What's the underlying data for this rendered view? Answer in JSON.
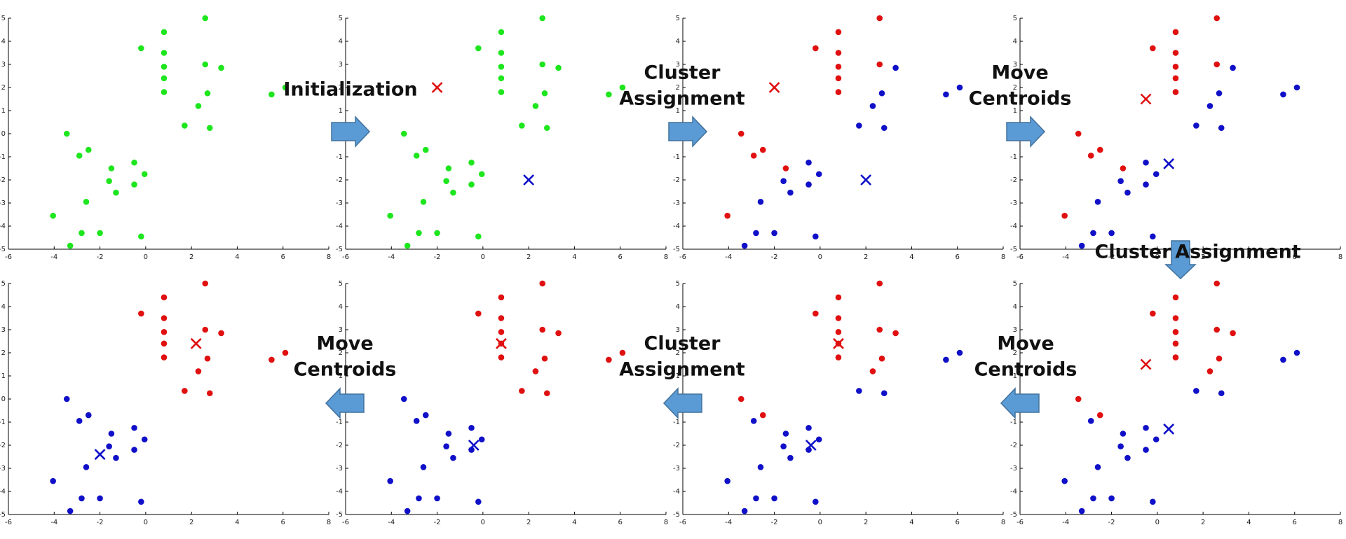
{
  "chart_data": [
    {
      "type": "scatter",
      "xlim": [
        -6,
        8
      ],
      "ylim": [
        -5,
        5
      ],
      "xticks": [
        -6,
        -4,
        -2,
        0,
        2,
        4,
        6,
        8
      ],
      "yticks": [
        -5,
        -4,
        -3,
        -2,
        -1,
        0,
        1,
        2,
        3,
        4,
        5
      ],
      "series": [
        {
          "color": "#1ee61e",
          "marker": "o",
          "x": [
            2.6,
            0.8,
            -0.2,
            0.8,
            0.8,
            2.6,
            3.3,
            0.8,
            0.8,
            2.7,
            2.3,
            5.5,
            6.1,
            1.7,
            2.8,
            -3.45,
            -2.9,
            -2.5,
            -1.5,
            -0.5,
            -0.05,
            -1.6,
            -0.5,
            -1.3,
            -2.6,
            -4.05,
            -2.8,
            -2.0,
            -0.2,
            -3.3
          ],
          "y": [
            5.0,
            4.4,
            3.7,
            3.5,
            2.9,
            3.0,
            2.85,
            2.4,
            1.8,
            1.75,
            1.2,
            1.7,
            2.0,
            0.35,
            0.25,
            0.0,
            -0.95,
            -0.7,
            -1.5,
            -1.25,
            -1.75,
            -2.05,
            -2.2,
            -2.55,
            -2.95,
            -3.55,
            -4.3,
            -4.3,
            -4.45,
            -4.85
          ]
        }
      ]
    },
    {
      "type": "scatter",
      "xlim": [
        -6,
        8
      ],
      "ylim": [
        -5,
        5
      ],
      "xticks": [
        -6,
        -4,
        -2,
        0,
        2,
        4,
        6,
        8
      ],
      "yticks": [
        -5,
        -4,
        -3,
        -2,
        -1,
        0,
        1,
        2,
        3,
        4,
        5
      ],
      "series": [
        {
          "color": "#1ee61e",
          "marker": "o",
          "x": [
            2.6,
            0.8,
            -0.2,
            0.8,
            0.8,
            2.6,
            3.3,
            0.8,
            0.8,
            2.7,
            2.3,
            5.5,
            6.1,
            1.7,
            2.8,
            -3.45,
            -2.9,
            -2.5,
            -1.5,
            -0.5,
            -0.05,
            -1.6,
            -0.5,
            -1.3,
            -2.6,
            -4.05,
            -2.8,
            -2.0,
            -0.2,
            -3.3
          ],
          "y": [
            5.0,
            4.4,
            3.7,
            3.5,
            2.9,
            3.0,
            2.85,
            2.4,
            1.8,
            1.75,
            1.2,
            1.7,
            2.0,
            0.35,
            0.25,
            0.0,
            -0.95,
            -0.7,
            -1.5,
            -1.25,
            -1.75,
            -2.05,
            -2.2,
            -2.55,
            -2.95,
            -3.55,
            -4.3,
            -4.3,
            -4.45,
            -4.85
          ]
        },
        {
          "color": "#e01010",
          "marker": "x",
          "x": [
            -2
          ],
          "y": [
            2
          ]
        },
        {
          "color": "#1010c8",
          "marker": "x",
          "x": [
            2
          ],
          "y": [
            -2
          ]
        }
      ]
    },
    {
      "type": "scatter",
      "xlim": [
        -6,
        8
      ],
      "ylim": [
        -5,
        5
      ],
      "xticks": [
        -6,
        -4,
        -2,
        0,
        2,
        4,
        6,
        8
      ],
      "yticks": [
        -5,
        -4,
        -3,
        -2,
        -1,
        0,
        1,
        2,
        3,
        4,
        5
      ],
      "series": [
        {
          "color": "#e01010",
          "marker": "o",
          "x": [
            2.6,
            0.8,
            -0.2,
            0.8,
            0.8,
            2.6,
            0.8,
            0.8,
            -3.45,
            -2.9,
            -2.5,
            -1.5,
            -4.05
          ],
          "y": [
            5.0,
            4.4,
            3.7,
            3.5,
            2.9,
            3.0,
            2.4,
            1.8,
            0.0,
            -0.95,
            -0.7,
            -1.5,
            -3.55
          ]
        },
        {
          "color": "#1010c8",
          "marker": "o",
          "x": [
            3.3,
            2.7,
            2.3,
            5.5,
            6.1,
            1.7,
            2.8,
            -0.5,
            -0.05,
            -1.6,
            -0.5,
            -1.3,
            -2.6,
            -2.8,
            -2.0,
            -0.2,
            -3.3
          ],
          "y": [
            2.85,
            1.75,
            1.2,
            1.7,
            2.0,
            0.35,
            0.25,
            -1.25,
            -1.75,
            -2.05,
            -2.2,
            -2.55,
            -2.95,
            -4.3,
            -4.3,
            -4.45,
            -4.85
          ]
        },
        {
          "color": "#e01010",
          "marker": "x",
          "x": [
            -2
          ],
          "y": [
            2
          ]
        },
        {
          "color": "#1010c8",
          "marker": "x",
          "x": [
            2
          ],
          "y": [
            -2
          ]
        }
      ]
    },
    {
      "type": "scatter",
      "xlim": [
        -6,
        8
      ],
      "ylim": [
        -5,
        5
      ],
      "xticks": [
        -6,
        -4,
        -2,
        0,
        2,
        4,
        6,
        8
      ],
      "yticks": [
        -5,
        -4,
        -3,
        -2,
        -1,
        0,
        1,
        2,
        3,
        4,
        5
      ],
      "series": [
        {
          "color": "#e01010",
          "marker": "o",
          "x": [
            2.6,
            0.8,
            -0.2,
            0.8,
            0.8,
            2.6,
            0.8,
            0.8,
            -3.45,
            -2.9,
            -2.5,
            -1.5,
            -4.05
          ],
          "y": [
            5.0,
            4.4,
            3.7,
            3.5,
            2.9,
            3.0,
            2.4,
            1.8,
            0.0,
            -0.95,
            -0.7,
            -1.5,
            -3.55
          ]
        },
        {
          "color": "#1010c8",
          "marker": "o",
          "x": [
            3.3,
            2.7,
            2.3,
            5.5,
            6.1,
            1.7,
            2.8,
            -0.5,
            -0.05,
            -1.6,
            -0.5,
            -1.3,
            -2.6,
            -2.8,
            -2.0,
            -0.2,
            -3.3
          ],
          "y": [
            2.85,
            1.75,
            1.2,
            1.7,
            2.0,
            0.35,
            0.25,
            -1.25,
            -1.75,
            -2.05,
            -2.2,
            -2.55,
            -2.95,
            -4.3,
            -4.3,
            -4.45,
            -4.85
          ]
        },
        {
          "color": "#e01010",
          "marker": "x",
          "x": [
            -0.5
          ],
          "y": [
            1.5
          ]
        },
        {
          "color": "#1010c8",
          "marker": "x",
          "x": [
            0.5
          ],
          "y": [
            -1.3
          ]
        }
      ]
    },
    {
      "type": "scatter",
      "xlim": [
        -6,
        8
      ],
      "ylim": [
        -5,
        5
      ],
      "xticks": [
        -6,
        -4,
        -2,
        0,
        2,
        4,
        6,
        8
      ],
      "yticks": [
        -5,
        -4,
        -3,
        -2,
        -1,
        0,
        1,
        2,
        3,
        4,
        5
      ],
      "series": [
        {
          "color": "#e01010",
          "marker": "o",
          "x": [
            2.6,
            0.8,
            -0.2,
            0.8,
            0.8,
            2.6,
            3.3,
            0.8,
            0.8,
            2.7,
            2.3,
            5.5,
            6.1,
            1.7,
            2.8
          ],
          "y": [
            5.0,
            4.4,
            3.7,
            3.5,
            2.9,
            3.0,
            2.85,
            2.4,
            1.8,
            1.75,
            1.2,
            1.7,
            2.0,
            0.35,
            0.25
          ]
        },
        {
          "color": "#1010c8",
          "marker": "o",
          "x": [
            -3.45,
            -2.9,
            -2.5,
            -1.5,
            -0.5,
            -0.05,
            -1.6,
            -0.5,
            -1.3,
            -2.6,
            -4.05,
            -2.8,
            -2.0,
            -0.2,
            -3.3
          ],
          "y": [
            0.0,
            -0.95,
            -0.7,
            -1.5,
            -1.25,
            -1.75,
            -2.05,
            -2.2,
            -2.55,
            -2.95,
            -3.55,
            -4.3,
            -4.3,
            -4.45,
            -4.85
          ]
        },
        {
          "color": "#e01010",
          "marker": "x",
          "x": [
            2.2
          ],
          "y": [
            2.4
          ]
        },
        {
          "color": "#1010c8",
          "marker": "x",
          "x": [
            -2.0
          ],
          "y": [
            -2.4
          ]
        }
      ]
    },
    {
      "type": "scatter",
      "xlim": [
        -6,
        8
      ],
      "ylim": [
        -5,
        5
      ],
      "xticks": [
        -6,
        -4,
        -2,
        0,
        2,
        4,
        6,
        8
      ],
      "yticks": [
        -5,
        -4,
        -3,
        -2,
        -1,
        0,
        1,
        2,
        3,
        4,
        5
      ],
      "series": [
        {
          "color": "#e01010",
          "marker": "o",
          "x": [
            2.6,
            0.8,
            -0.2,
            0.8,
            0.8,
            2.6,
            3.3,
            0.8,
            0.8,
            2.7,
            2.3,
            5.5,
            6.1,
            1.7,
            2.8
          ],
          "y": [
            5.0,
            4.4,
            3.7,
            3.5,
            2.9,
            3.0,
            2.85,
            2.4,
            1.8,
            1.75,
            1.2,
            1.7,
            2.0,
            0.35,
            0.25
          ]
        },
        {
          "color": "#1010c8",
          "marker": "o",
          "x": [
            -3.45,
            -2.9,
            -2.5,
            -1.5,
            -0.5,
            -0.05,
            -1.6,
            -0.5,
            -1.3,
            -2.6,
            -4.05,
            -2.8,
            -2.0,
            -0.2,
            -3.3
          ],
          "y": [
            0.0,
            -0.95,
            -0.7,
            -1.5,
            -1.25,
            -1.75,
            -2.05,
            -2.2,
            -2.55,
            -2.95,
            -3.55,
            -4.3,
            -4.3,
            -4.45,
            -4.85
          ]
        },
        {
          "color": "#e01010",
          "marker": "x",
          "x": [
            0.8
          ],
          "y": [
            2.4
          ]
        },
        {
          "color": "#1010c8",
          "marker": "x",
          "x": [
            -0.4
          ],
          "y": [
            -2.0
          ]
        }
      ]
    },
    {
      "type": "scatter",
      "xlim": [
        -6,
        8
      ],
      "ylim": [
        -5,
        5
      ],
      "xticks": [
        -6,
        -4,
        -2,
        0,
        2,
        4,
        6,
        8
      ],
      "yticks": [
        -5,
        -4,
        -3,
        -2,
        -1,
        0,
        1,
        2,
        3,
        4,
        5
      ],
      "series": [
        {
          "color": "#e01010",
          "marker": "o",
          "x": [
            2.6,
            0.8,
            -0.2,
            0.8,
            0.8,
            2.6,
            3.3,
            0.8,
            0.8,
            2.7,
            2.3,
            -3.45,
            -2.5
          ],
          "y": [
            5.0,
            4.4,
            3.7,
            3.5,
            2.9,
            3.0,
            2.85,
            2.4,
            1.8,
            1.75,
            1.2,
            0.0,
            -0.7
          ]
        },
        {
          "color": "#1010c8",
          "marker": "o",
          "x": [
            5.5,
            6.1,
            1.7,
            2.8,
            -2.9,
            -1.5,
            -0.5,
            -0.05,
            -1.6,
            -0.5,
            -1.3,
            -2.6,
            -4.05,
            -2.8,
            -2.0,
            -0.2,
            -3.3
          ],
          "y": [
            1.7,
            2.0,
            0.35,
            0.25,
            -0.95,
            -1.5,
            -1.25,
            -1.75,
            -2.05,
            -2.2,
            -2.55,
            -2.95,
            -3.55,
            -4.3,
            -4.3,
            -4.45,
            -4.85
          ]
        },
        {
          "color": "#e01010",
          "marker": "x",
          "x": [
            0.8
          ],
          "y": [
            2.4
          ]
        },
        {
          "color": "#1010c8",
          "marker": "x",
          "x": [
            -0.4
          ],
          "y": [
            -2.0
          ]
        }
      ]
    },
    {
      "type": "scatter",
      "xlim": [
        -6,
        8
      ],
      "ylim": [
        -5,
        5
      ],
      "xticks": [
        -6,
        -4,
        -2,
        0,
        2,
        4,
        6,
        8
      ],
      "yticks": [
        -5,
        -4,
        -3,
        -2,
        -1,
        0,
        1,
        2,
        3,
        4,
        5
      ],
      "series": [
        {
          "color": "#e01010",
          "marker": "o",
          "x": [
            2.6,
            0.8,
            -0.2,
            0.8,
            0.8,
            2.6,
            3.3,
            0.8,
            0.8,
            2.7,
            2.3,
            -3.45,
            -2.5
          ],
          "y": [
            5.0,
            4.4,
            3.7,
            3.5,
            2.9,
            3.0,
            2.85,
            2.4,
            1.8,
            1.75,
            1.2,
            0.0,
            -0.7
          ]
        },
        {
          "color": "#1010c8",
          "marker": "o",
          "x": [
            5.5,
            6.1,
            1.7,
            2.8,
            -2.9,
            -1.5,
            -0.5,
            -0.05,
            -1.6,
            -0.5,
            -1.3,
            -2.6,
            -4.05,
            -2.8,
            -2.0,
            -0.2,
            -3.3
          ],
          "y": [
            1.7,
            2.0,
            0.35,
            0.25,
            -0.95,
            -1.5,
            -1.25,
            -1.75,
            -2.05,
            -2.2,
            -2.55,
            -2.95,
            -3.55,
            -4.3,
            -4.3,
            -4.45,
            -4.85
          ]
        },
        {
          "color": "#e01010",
          "marker": "x",
          "x": [
            -0.5
          ],
          "y": [
            1.5
          ]
        },
        {
          "color": "#1010c8",
          "marker": "x",
          "x": [
            0.5
          ],
          "y": [
            -1.3
          ]
        }
      ]
    }
  ],
  "steps": [
    [
      "Initialization"
    ],
    [
      "Cluster",
      "Assignment"
    ],
    [
      "Move",
      "Centroids"
    ],
    [
      "Cluster",
      "Assignment"
    ],
    [
      "Move",
      "Centroids"
    ],
    [
      "Cluster",
      "Assignment"
    ],
    [
      "Move",
      "Centroids"
    ]
  ]
}
